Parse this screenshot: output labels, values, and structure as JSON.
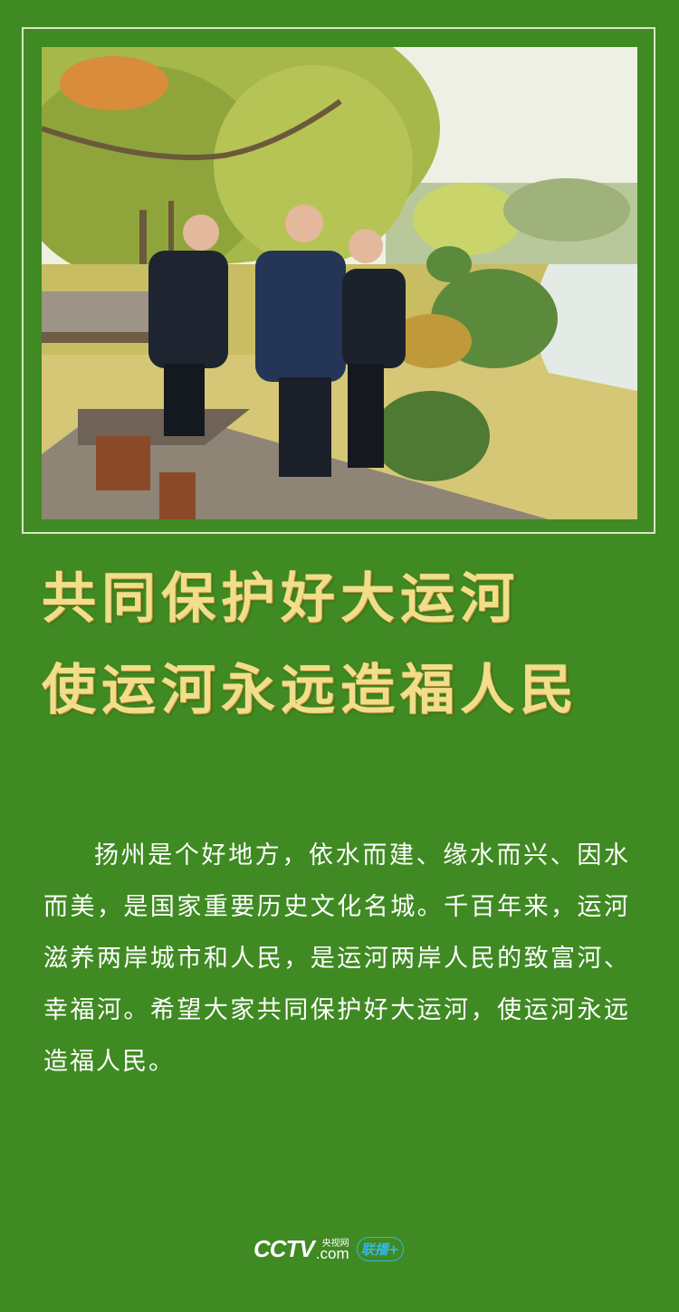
{
  "headline": {
    "line1": "共同保护好大运河",
    "line2": "使运河永远造福人民"
  },
  "body": {
    "paragraph": "扬州是个好地方，依水而建、缘水而兴、因水而美，是国家重要历史文化名城。千百年来，运河滋养两岸城市和人民，是运河两岸人民的致富河、幸福河。希望大家共同保护好大运河，使运河永远造福人民。"
  },
  "footer": {
    "cctv_word": "CCTV",
    "cctv_com": ".com",
    "cctv_cn": "央视网",
    "lianbo": "联播+"
  },
  "colors": {
    "background": "#3f8a22",
    "headline": "#f2dd8a",
    "body_text": "#ffffff",
    "frame": "#d9e8c4"
  },
  "icons": {
    "cctv_logo": "cctv-logo",
    "lianbo_logo": "lianbo-logo"
  }
}
